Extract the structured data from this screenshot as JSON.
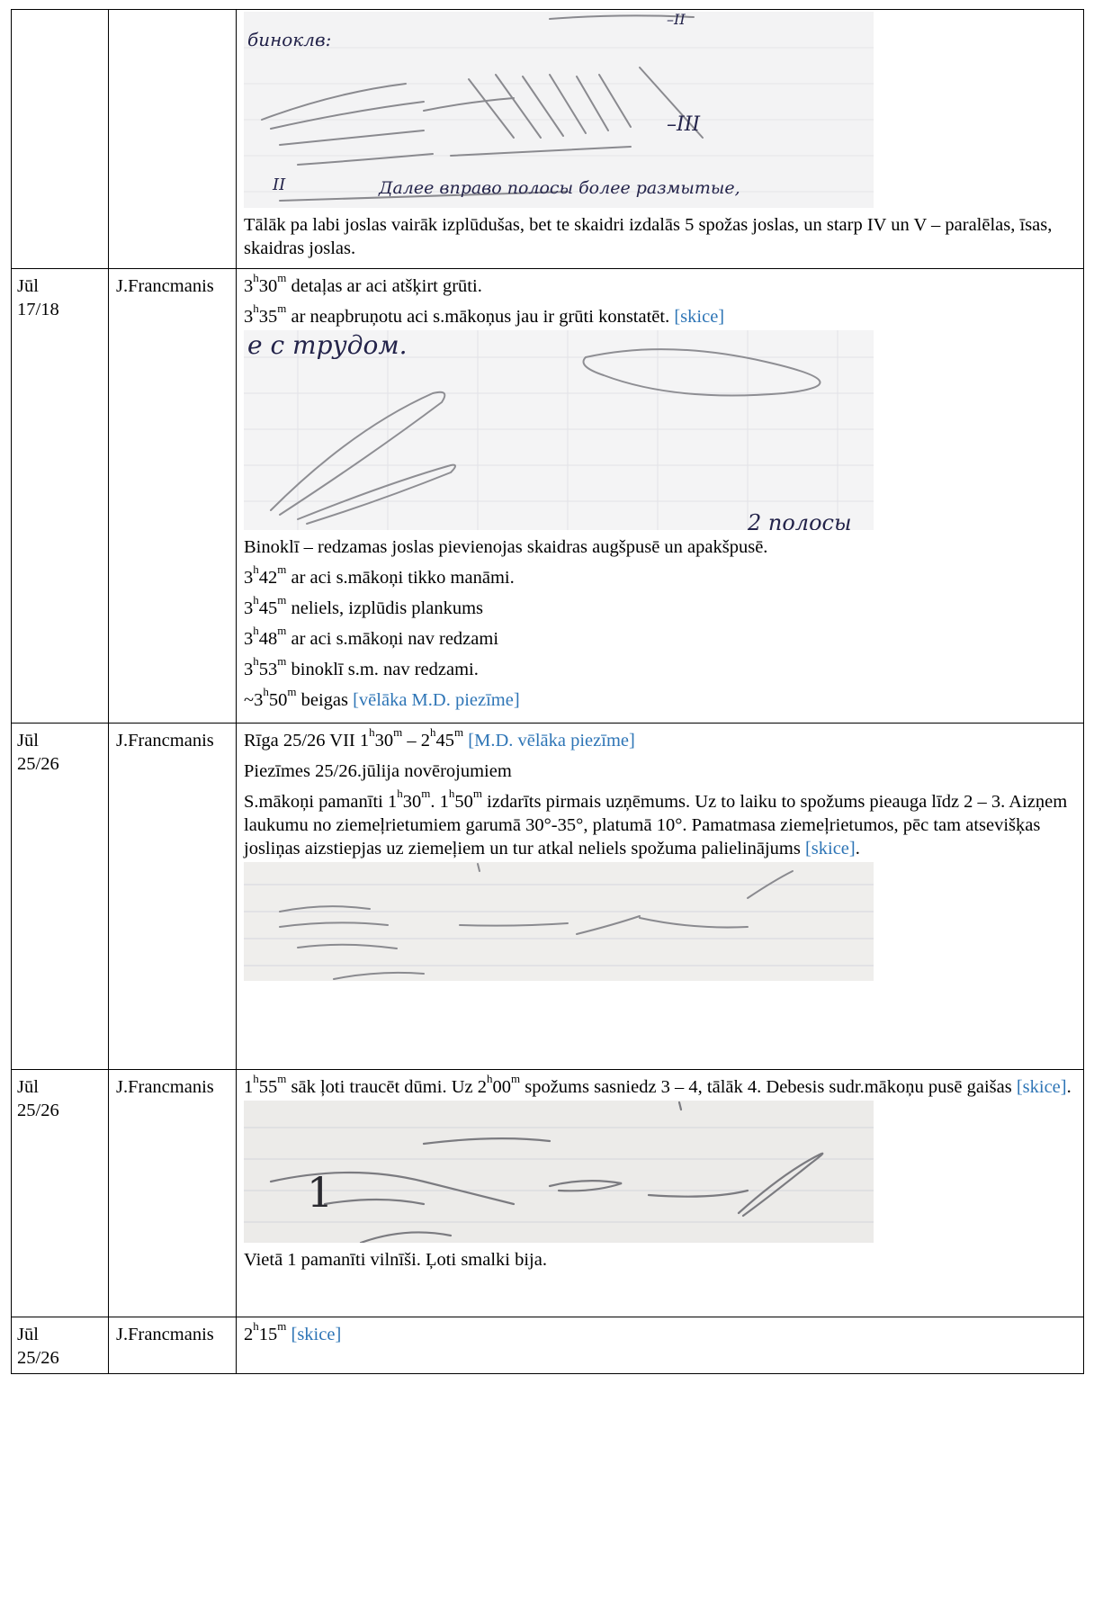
{
  "rows": [
    {
      "date": "",
      "observer": "",
      "lines": [
        {
          "text": "Tālāk pa labi joslas vairāk izplūdušas, bet te skaidri izdalās 5 spožas joslas, un starp IV un V – paralēlas, īsas, skaidras joslas."
        }
      ],
      "sketch_text": [
        "биноклв:",
        "–II",
        "–III",
        "II",
        "Далее вправо полосы более размытые,"
      ]
    },
    {
      "date_a": "Jūl",
      "date_b": "17/18",
      "observer": "J.Francmanis",
      "l1": {
        "h": "3",
        "m": "30",
        "rest": " detaļas ar aci atšķirt grūti."
      },
      "l2": {
        "h": "3",
        "m": "35",
        "rest": " ar neapbruņotu aci s.mākoņus jau ir grūti konstatēt. ",
        "note": "[skice]"
      },
      "sketch_text": [
        "е с трудом.",
        "2 полосы"
      ],
      "l3": "Binoklī – redzamas joslas pievienojas skaidras augšpusē un apakšpusē.",
      "l4": {
        "h": "3",
        "m": "42",
        "rest": " ar aci s.mākoņi tikko manāmi."
      },
      "l5": {
        "h": "3",
        "m": "45",
        "rest": " neliels, izplūdis plankums"
      },
      "l6": {
        "h": "3",
        "m": "48",
        "rest": " ar aci s.mākoņi nav redzami"
      },
      "l7": {
        "h": "3",
        "m": "53",
        "rest": " binoklī s.m. nav redzami."
      },
      "l8": {
        "prefix": "~3",
        "m": "50",
        "rest": " beigas ",
        "note": "[vēlāka M.D. piezīme]"
      }
    },
    {
      "date_a": "Jūl",
      "date_b": "25/26",
      "observer": "J.Francmanis",
      "l1": {
        "a": "Rīga 25/26 VII 1",
        "b": "30",
        "c": " – 2",
        "d": "45",
        "note": " [M.D. vēlāka piezīme]"
      },
      "l2": "Piezīmes 25/26.jūlija novērojumiem",
      "l3": {
        "a": "S.mākoņi pamanīti 1",
        "b": "30",
        "c": ". 1",
        "d": "50",
        "rest": " izdarīts pirmais uzņēmums. Uz to laiku to spožums pieauga līdz 2 – 3. Aizņem laukumu no ziemeļrietumiem garumā 30°-35°, platumā 10°. Pamatmasa ziemeļrietumos, pēc tam atsevišķas josliņas aizstiepjas uz ziemeļiem un tur atkal neliels spožuma palielinājums ",
        "note": "[skice]",
        "end": "."
      }
    },
    {
      "date_a": "Jūl",
      "date_b": "25/26",
      "observer": "J.Francmanis",
      "l1": {
        "a": "1",
        "b": "55",
        "c": " sāk ļoti traucēt dūmi. Uz 2",
        "d": "00",
        "rest": " spožums sasniedz 3 – 4, tālāk 4. Debesis sudr.mākoņu pusē gaišas ",
        "note": "[skice]",
        "end": "."
      },
      "sketch_text": [
        "1"
      ],
      "l2": "Vietā 1 pamanīti vilnīši. Ļoti smalki bija."
    },
    {
      "date_a": "Jūl",
      "date_b": "25/26",
      "observer": "J.Francmanis",
      "l1": {
        "a": "2",
        "b": "15",
        "note": " [skice]"
      }
    }
  ],
  "units": {
    "h": "h",
    "m": "m"
  },
  "colors": {
    "note": "#2e75b6",
    "border": "#000000"
  }
}
